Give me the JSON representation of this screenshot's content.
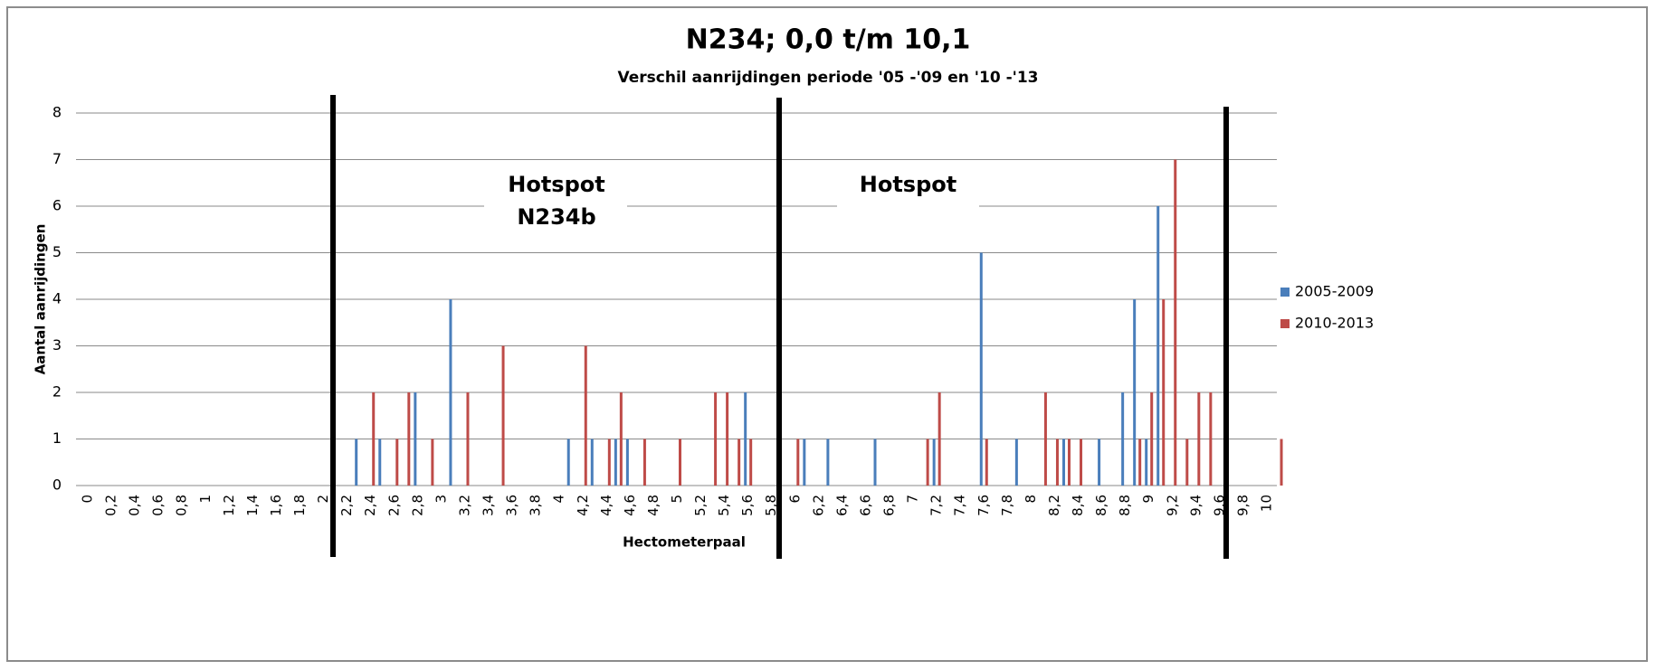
{
  "chart_data": {
    "type": "bar",
    "title": "N234; 0,0 t/m 10,1",
    "subtitle": "Verschil aanrijdingen periode '05 -'09 en '10 -'13",
    "x_label": "Hectometerpaal",
    "y_label": "Aantal aanrijdingen",
    "annotations": [
      "Hotspot N234b",
      "Hotspot"
    ],
    "categories": [
      "0",
      null,
      "0,2",
      null,
      "0,4",
      null,
      "0,6",
      null,
      "0,8",
      null,
      "1",
      null,
      "1,2",
      null,
      "1,4",
      null,
      "1,6",
      null,
      "1,8",
      null,
      "2",
      null,
      "2,2",
      null,
      "2,4",
      null,
      "2,6",
      null,
      "2,8",
      null,
      "3",
      null,
      "3,2",
      null,
      "3,4",
      null,
      "3,6",
      null,
      "3,8",
      null,
      "4",
      null,
      "4,2",
      null,
      "4,4",
      null,
      "4,6",
      null,
      "4,8",
      null,
      "5",
      null,
      "5,2",
      null,
      "5,4",
      null,
      "5,6",
      null,
      "5,8",
      null,
      "6",
      null,
      "6,2",
      null,
      "6,4",
      null,
      "6,6",
      null,
      "6,8",
      null,
      "7",
      null,
      "7,2",
      null,
      "7,4",
      null,
      "7,6",
      null,
      "7,8",
      null,
      "8",
      null,
      "8,2",
      null,
      "8,4",
      null,
      "8,6",
      null,
      "8,8",
      null,
      "9",
      null,
      "9,2",
      null,
      "9,4",
      null,
      "9,6",
      null,
      "9,8",
      null,
      "10",
      null
    ],
    "series": [
      {
        "name": "2005-2009",
        "color": "#4a7ebb",
        "values": [
          0,
          0,
          0,
          0,
          0,
          0,
          0,
          0,
          0,
          0,
          0,
          0,
          0,
          0,
          0,
          0,
          0,
          0,
          0,
          0,
          0,
          0,
          0,
          1,
          0,
          1,
          0,
          0,
          2,
          0,
          0,
          4,
          0,
          0,
          0,
          0,
          0,
          0,
          0,
          0,
          0,
          1,
          0,
          1,
          0,
          1,
          1,
          0,
          0,
          0,
          0,
          0,
          0,
          0,
          0,
          0,
          2,
          0,
          0,
          0,
          0,
          1,
          0,
          1,
          0,
          0,
          0,
          1,
          0,
          0,
          0,
          0,
          1,
          0,
          0,
          0,
          5,
          0,
          0,
          1,
          0,
          0,
          0,
          1,
          0,
          0,
          1,
          0,
          2,
          4,
          1,
          6,
          0,
          0,
          0,
          0,
          0,
          0,
          0,
          0,
          0,
          0
        ]
      },
      {
        "name": "2010-2013",
        "color": "#be4b48",
        "values": [
          0,
          0,
          0,
          0,
          0,
          0,
          0,
          0,
          0,
          0,
          0,
          0,
          0,
          0,
          0,
          0,
          0,
          0,
          0,
          0,
          0,
          0,
          0,
          0,
          2,
          0,
          1,
          2,
          0,
          1,
          0,
          0,
          2,
          0,
          0,
          3,
          0,
          0,
          0,
          0,
          0,
          0,
          3,
          0,
          1,
          2,
          0,
          1,
          0,
          0,
          1,
          0,
          0,
          2,
          2,
          1,
          1,
          0,
          0,
          0,
          1,
          0,
          0,
          0,
          0,
          0,
          0,
          0,
          0,
          0,
          0,
          1,
          2,
          0,
          0,
          0,
          1,
          0,
          0,
          0,
          0,
          2,
          1,
          1,
          1,
          0,
          0,
          0,
          0,
          1,
          2,
          4,
          7,
          1,
          2,
          2,
          0,
          0,
          0,
          0,
          0,
          1
        ]
      }
    ],
    "ylim": [
      0,
      8
    ],
    "yticks": [
      0,
      1,
      2,
      3,
      4,
      5,
      6,
      7,
      8
    ],
    "grid": true,
    "legend": "right"
  }
}
